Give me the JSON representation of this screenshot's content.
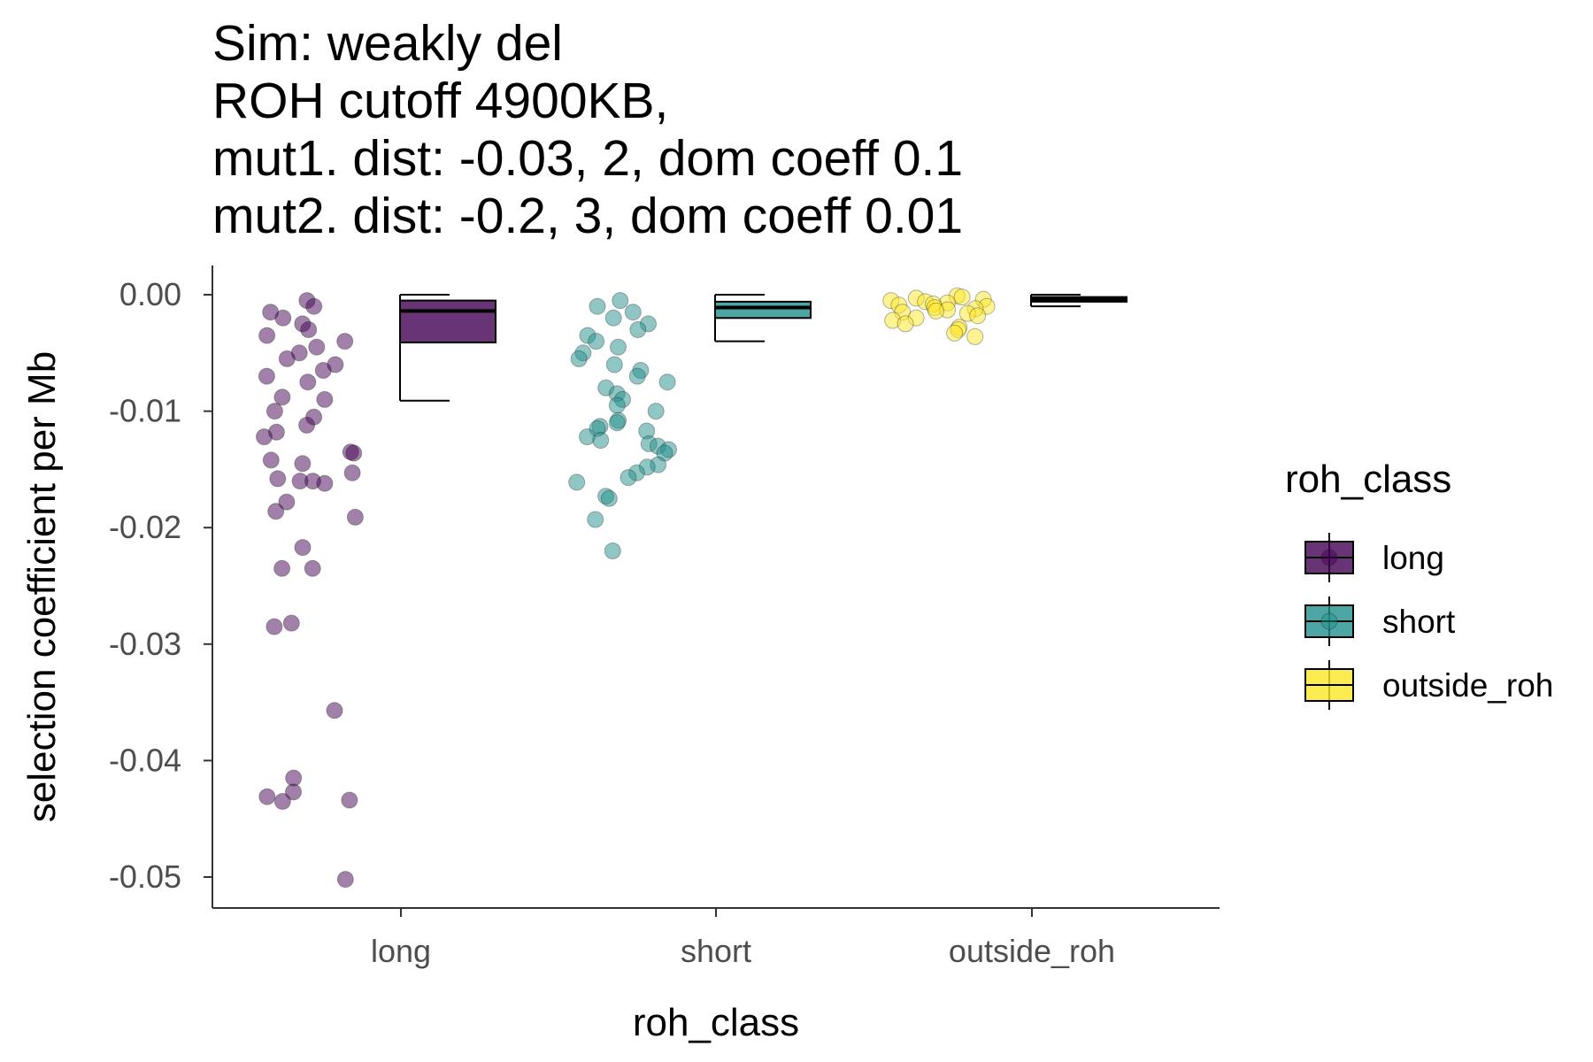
{
  "chart_data": {
    "type": "boxplot-with-jitter",
    "title_lines": [
      "Sim: weakly del",
      "ROH cutoff 4900KB,",
      "mut1. dist: -0.03, 2, dom coeff 0.1",
      "mut2. dist: -0.2, 3, dom coeff 0.01"
    ],
    "xlabel": "roh_class",
    "ylabel": "selection coefficient per Mb",
    "categories": [
      "long",
      "short",
      "outside_roh"
    ],
    "ylim": [
      -0.0525,
      0.0025
    ],
    "y_ticks": [
      0.0,
      -0.01,
      -0.02,
      -0.03,
      -0.04,
      -0.05
    ],
    "y_tick_labels": [
      "0.00",
      "-0.01",
      "-0.02",
      "-0.03",
      "-0.04",
      "-0.05"
    ],
    "grid": false,
    "legend": {
      "title": "roh_class",
      "position": "right",
      "entries": [
        "long",
        "short",
        "outside_roh"
      ]
    },
    "colors": {
      "long": "#440154",
      "short": "#21908C",
      "outside_roh": "#FDE725"
    },
    "boxes": [
      {
        "category": "long",
        "lower_whisker": -0.0091,
        "q1": -0.0041,
        "median": -0.0014,
        "q3": -0.0005,
        "upper_whisker": 0.0
      },
      {
        "category": "short",
        "lower_whisker": -0.004,
        "q1": -0.002,
        "median": -0.0011,
        "q3": -0.0006,
        "upper_whisker": 0.0
      },
      {
        "category": "outside_roh",
        "lower_whisker": -0.001,
        "q1": -0.0006,
        "median": -0.0004,
        "q3": -0.0002,
        "upper_whisker": 0.0
      }
    ],
    "points": {
      "long": [
        -0.0005,
        -0.001,
        -0.0015,
        -0.002,
        -0.0025,
        -0.003,
        -0.0035,
        -0.004,
        -0.0045,
        -0.005,
        -0.0055,
        -0.006,
        -0.0065,
        -0.007,
        -0.0075,
        -0.0088,
        -0.009,
        -0.01,
        -0.0105,
        -0.0112,
        -0.0118,
        -0.0122,
        -0.0135,
        -0.0136,
        -0.0142,
        -0.0145,
        -0.0153,
        -0.0158,
        -0.016,
        -0.016,
        -0.0162,
        -0.0178,
        -0.0186,
        -0.0191,
        -0.0217,
        -0.0235,
        -0.0235,
        -0.0282,
        -0.0285,
        -0.0357,
        -0.0415,
        -0.0427,
        -0.0431,
        -0.0434,
        -0.0435,
        -0.0502
      ],
      "short": [
        -0.0005,
        -0.001,
        -0.0015,
        -0.002,
        -0.0025,
        -0.003,
        -0.0035,
        -0.004,
        -0.0045,
        -0.005,
        -0.0055,
        -0.006,
        -0.0065,
        -0.007,
        -0.0075,
        -0.008,
        -0.0085,
        -0.009,
        -0.0095,
        -0.01,
        -0.0108,
        -0.011,
        -0.0113,
        -0.0115,
        -0.0117,
        -0.0122,
        -0.0125,
        -0.0128,
        -0.013,
        -0.0133,
        -0.0136,
        -0.0146,
        -0.0148,
        -0.0153,
        -0.0157,
        -0.0161,
        -0.0173,
        -0.0175,
        -0.0193,
        -0.022
      ],
      "outside_roh": [
        -0.0001,
        -0.0002,
        -0.0003,
        -0.0004,
        -0.0005,
        -0.0006,
        -0.0007,
        -0.0008,
        -0.0009,
        -0.001,
        -0.0011,
        -0.0012,
        -0.0013,
        -0.0014,
        -0.0015,
        -0.0016,
        -0.0018,
        -0.002,
        -0.0022,
        -0.0025,
        -0.0028,
        -0.003,
        -0.0033,
        -0.0036
      ]
    }
  }
}
